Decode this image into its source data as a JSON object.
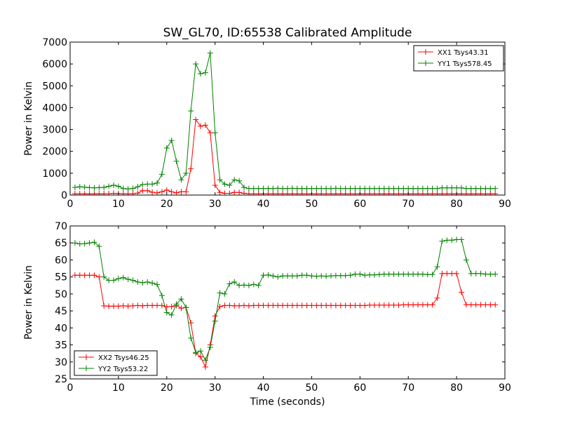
{
  "title": "SW_GL70, ID:65538 Calibrated Amplitude",
  "xlabel": "Time (seconds)",
  "colors": {
    "red": "#ff0000",
    "green": "#008000"
  },
  "chart_data": [
    {
      "type": "line",
      "ylabel": "Power in Kelvin",
      "xlim": [
        0,
        90
      ],
      "ylim": [
        0,
        7000
      ],
      "xticks": [
        0,
        10,
        20,
        30,
        40,
        50,
        60,
        70,
        80,
        90
      ],
      "yticks": [
        0,
        1000,
        2000,
        3000,
        4000,
        5000,
        6000,
        7000
      ],
      "grid": false,
      "legend_position": "top-right",
      "series": [
        {
          "name": "XX1 Tsys43.31",
          "color": "#ff0000",
          "x": [
            1,
            2,
            3,
            4,
            5,
            6,
            7,
            8,
            9,
            10,
            11,
            12,
            13,
            14,
            15,
            16,
            17,
            18,
            19,
            20,
            21,
            22,
            23,
            24,
            25,
            26,
            27,
            28,
            29,
            30,
            31,
            32,
            33,
            34,
            35,
            36,
            37,
            38,
            39,
            40,
            41,
            42,
            43,
            44,
            45,
            46,
            47,
            48,
            49,
            50,
            51,
            52,
            53,
            54,
            55,
            56,
            57,
            58,
            59,
            60,
            61,
            62,
            63,
            64,
            65,
            66,
            67,
            68,
            69,
            70,
            71,
            72,
            73,
            74,
            75,
            76,
            77,
            78,
            79,
            80,
            81,
            82,
            83,
            84,
            85,
            86,
            87,
            88
          ],
          "y": [
            60,
            60,
            55,
            55,
            55,
            60,
            60,
            65,
            80,
            70,
            60,
            60,
            60,
            90,
            200,
            200,
            130,
            100,
            150,
            230,
            150,
            100,
            150,
            150,
            1200,
            3450,
            3150,
            3200,
            2850,
            450,
            120,
            80,
            80,
            120,
            120,
            80,
            60,
            60,
            60,
            60,
            60,
            60,
            60,
            60,
            60,
            60,
            60,
            60,
            60,
            60,
            60,
            60,
            60,
            60,
            60,
            60,
            60,
            60,
            60,
            60,
            60,
            60,
            60,
            60,
            60,
            60,
            60,
            60,
            60,
            60,
            60,
            60,
            60,
            60,
            60,
            60,
            60,
            60,
            60,
            60,
            60,
            60,
            60,
            60,
            60,
            60,
            60,
            60
          ]
        },
        {
          "name": "YY1 Tsys578.45",
          "color": "#008000",
          "x": [
            1,
            2,
            3,
            4,
            5,
            6,
            7,
            8,
            9,
            10,
            11,
            12,
            13,
            14,
            15,
            16,
            17,
            18,
            19,
            20,
            21,
            22,
            23,
            24,
            25,
            26,
            27,
            28,
            29,
            30,
            31,
            32,
            33,
            34,
            35,
            36,
            37,
            38,
            39,
            40,
            41,
            42,
            43,
            44,
            45,
            46,
            47,
            48,
            49,
            50,
            51,
            52,
            53,
            54,
            55,
            56,
            57,
            58,
            59,
            60,
            61,
            62,
            63,
            64,
            65,
            66,
            67,
            68,
            69,
            70,
            71,
            72,
            73,
            74,
            75,
            76,
            77,
            78,
            79,
            80,
            81,
            82,
            83,
            84,
            85,
            86,
            87,
            88
          ],
          "y": [
            350,
            380,
            360,
            340,
            330,
            340,
            350,
            400,
            450,
            400,
            300,
            280,
            300,
            380,
            480,
            500,
            500,
            550,
            950,
            2150,
            2500,
            1550,
            700,
            1000,
            3850,
            6000,
            5550,
            5600,
            6500,
            2850,
            700,
            500,
            450,
            700,
            650,
            350,
            300,
            300,
            300,
            300,
            300,
            300,
            310,
            300,
            300,
            310,
            300,
            300,
            300,
            300,
            300,
            300,
            300,
            300,
            310,
            300,
            300,
            300,
            300,
            300,
            300,
            300,
            300,
            300,
            300,
            300,
            300,
            300,
            300,
            300,
            300,
            300,
            300,
            300,
            300,
            300,
            330,
            330,
            330,
            330,
            330,
            300,
            300,
            300,
            300,
            300,
            300,
            300
          ]
        }
      ]
    },
    {
      "type": "line",
      "ylabel": "Power in Kelvin",
      "xlabel": "Time (seconds)",
      "xlim": [
        0,
        90
      ],
      "ylim": [
        25,
        70
      ],
      "xticks": [
        0,
        10,
        20,
        30,
        40,
        50,
        60,
        70,
        80,
        90
      ],
      "yticks": [
        25,
        30,
        35,
        40,
        45,
        50,
        55,
        60,
        65,
        70
      ],
      "grid": false,
      "legend_position": "bottom-left",
      "series": [
        {
          "name": "XX2 Tsys46.25",
          "color": "#ff0000",
          "x": [
            1,
            2,
            3,
            4,
            5,
            6,
            7,
            8,
            9,
            10,
            11,
            12,
            13,
            14,
            15,
            16,
            17,
            18,
            19,
            20,
            21,
            22,
            23,
            24,
            25,
            26,
            27,
            28,
            29,
            30,
            31,
            32,
            33,
            34,
            35,
            36,
            37,
            38,
            39,
            40,
            41,
            42,
            43,
            44,
            45,
            46,
            47,
            48,
            49,
            50,
            51,
            52,
            53,
            54,
            55,
            56,
            57,
            58,
            59,
            60,
            61,
            62,
            63,
            64,
            65,
            66,
            67,
            68,
            69,
            70,
            71,
            72,
            73,
            74,
            75,
            76,
            77,
            78,
            79,
            80,
            81,
            82,
            83,
            84,
            85,
            86,
            87,
            88
          ],
          "y": [
            55.5,
            55.5,
            55.5,
            55.5,
            55.5,
            55,
            46.5,
            46.4,
            46.4,
            46.4,
            46.5,
            46.4,
            46.5,
            46.6,
            46.5,
            46.6,
            46.6,
            46.6,
            46.6,
            46.2,
            46.3,
            46.6,
            45.8,
            46,
            41.5,
            32.5,
            31.5,
            28.5,
            35,
            43.5,
            46.3,
            46.6,
            46.6,
            46.5,
            46.5,
            46.6,
            46.5,
            46.6,
            46.6,
            46.6,
            46.6,
            46.6,
            46.6,
            46.6,
            46.6,
            46.6,
            46.6,
            46.6,
            46.6,
            46.6,
            46.6,
            46.6,
            46.6,
            46.6,
            46.6,
            46.6,
            46.6,
            46.6,
            46.6,
            46.6,
            46.6,
            46.7,
            46.7,
            46.7,
            46.7,
            46.7,
            46.7,
            46.7,
            46.8,
            46.8,
            46.8,
            46.8,
            46.8,
            46.8,
            46.8,
            48.8,
            56,
            56,
            56,
            56,
            50.5,
            46.8,
            46.8,
            46.8,
            46.8,
            46.8,
            46.8,
            46.8
          ]
        },
        {
          "name": "YY2 Tsys53.22",
          "color": "#008000",
          "x": [
            1,
            2,
            3,
            4,
            5,
            6,
            7,
            8,
            9,
            10,
            11,
            12,
            13,
            14,
            15,
            16,
            17,
            18,
            19,
            20,
            21,
            22,
            23,
            24,
            25,
            26,
            27,
            28,
            29,
            30,
            31,
            32,
            33,
            34,
            35,
            36,
            37,
            38,
            39,
            40,
            41,
            42,
            43,
            44,
            45,
            46,
            47,
            48,
            49,
            50,
            51,
            52,
            53,
            54,
            55,
            56,
            57,
            58,
            59,
            60,
            61,
            62,
            63,
            64,
            65,
            66,
            67,
            68,
            69,
            70,
            71,
            72,
            73,
            74,
            75,
            76,
            77,
            78,
            79,
            80,
            81,
            82,
            83,
            84,
            85,
            86,
            87,
            88
          ],
          "y": [
            65,
            64.7,
            64.8,
            65,
            65.2,
            64,
            55,
            54,
            54,
            54.5,
            54.8,
            54.3,
            54,
            53.5,
            53.3,
            53.5,
            53.2,
            52.8,
            49.5,
            44.5,
            43.8,
            47,
            48.5,
            46,
            37,
            32.8,
            33.2,
            30.5,
            34.3,
            42,
            50.3,
            50,
            53,
            53.5,
            52.5,
            52.6,
            52.5,
            52.8,
            52.5,
            55.5,
            55.6,
            55.3,
            55,
            55.3,
            55.3,
            55.3,
            55.3,
            55.5,
            55.5,
            55.3,
            55.2,
            55.3,
            55.2,
            55.3,
            55.4,
            55.4,
            55.4,
            55.5,
            55.8,
            55.8,
            55.5,
            55.6,
            55.6,
            55.7,
            55.8,
            55.8,
            55.8,
            55.8,
            55.8,
            55.8,
            55.8,
            55.8,
            55.8,
            55.7,
            55.7,
            58,
            65.5,
            65.8,
            65.8,
            66,
            66,
            60,
            56,
            56,
            56,
            55.8,
            55.8,
            55.8
          ]
        }
      ]
    }
  ]
}
